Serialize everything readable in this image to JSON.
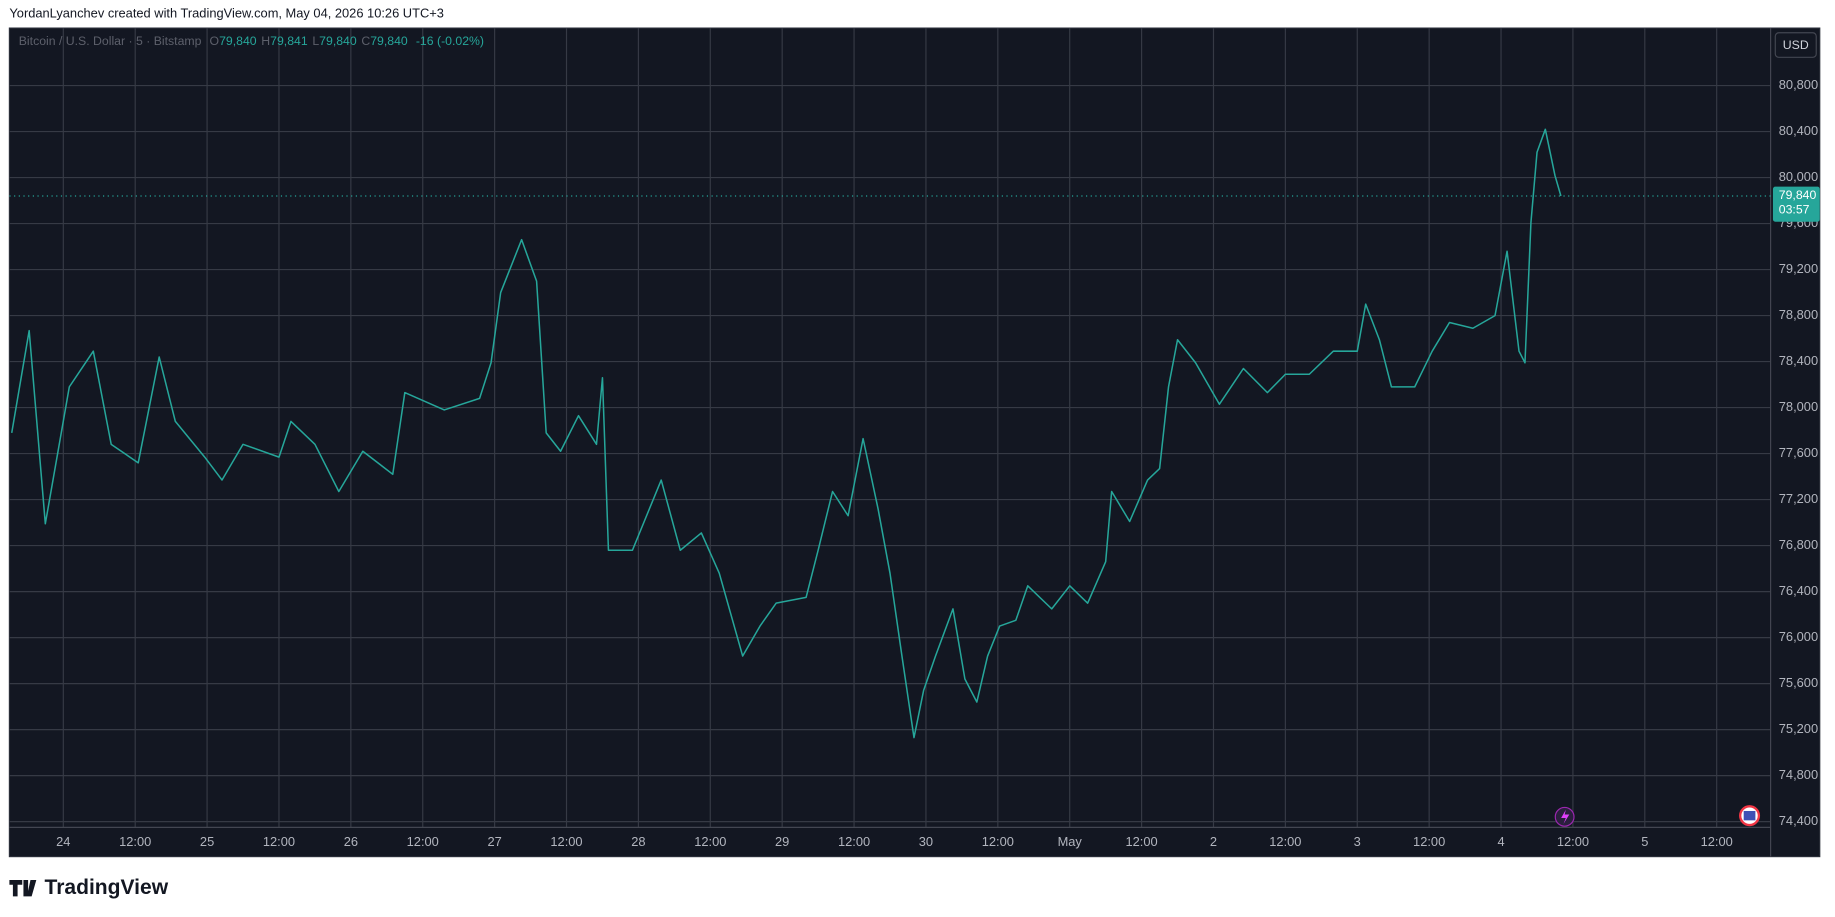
{
  "chart_data": {
    "type": "line",
    "header": "YordanLyanchev created with TradingView.com, May 04, 2026 10:26 UTC+3",
    "currency": "USD",
    "brand": "TradingView",
    "ohlc": [
      {
        "key": "O",
        "text": "79,840"
      },
      {
        "key": "H",
        "text": "79,841"
      },
      {
        "key": "L",
        "text": "79,840"
      },
      {
        "key": "C",
        "text": "79,840"
      }
    ],
    "change": "-16 (-0.02%)",
    "last_price": {
      "value": 79840,
      "label": "79,840"
    },
    "countdown": "03:57",
    "series": [
      {
        "name": "Bitcoin / U.S. Dollar · 5 · Bitstamp",
        "color": "#26a69a",
        "x": [
          -8.6,
          -5.7,
          -3,
          1,
          5,
          8,
          12.5,
          16,
          18.7,
          23.6,
          26.5,
          30,
          36,
          38,
          42,
          46,
          50,
          55,
          57,
          63.6,
          69.5,
          71.4,
          73,
          76.5,
          79,
          80.6,
          83,
          86,
          89,
          90,
          91,
          95,
          99.8,
          103,
          106.5,
          109.5,
          113.4,
          116.3,
          119,
          124,
          126,
          128.4,
          131,
          133.5,
          136,
          138,
          140,
          142,
          143.6,
          145.6,
          148.5,
          150.5,
          152.5,
          154.3,
          156.3,
          159,
          161,
          165,
          168,
          171,
          174,
          175,
          178,
          181,
          183,
          184.5,
          186,
          189,
          193,
          197,
          201,
          204,
          208,
          212,
          216,
          217.4,
          219.7,
          221.7,
          225.6,
          228.5,
          231.4,
          235.3,
          239,
          241,
          243,
          244,
          245,
          246,
          247.4,
          249,
          250
        ],
        "values": [
          77780,
          78670,
          76990,
          78180,
          78490,
          77680,
          77520,
          78440,
          77880,
          77570,
          77370,
          77680,
          77570,
          77880,
          77680,
          77270,
          77620,
          77420,
          78130,
          77980,
          78080,
          78390,
          79000,
          79460,
          79100,
          77780,
          77620,
          77930,
          77680,
          78260,
          76760,
          76760,
          77370,
          76760,
          76910,
          76560,
          75840,
          76100,
          76300,
          76350,
          76760,
          77270,
          77060,
          77730,
          77120,
          76560,
          75840,
          75130,
          75540,
          75840,
          76250,
          75640,
          75440,
          75840,
          76100,
          76150,
          76450,
          76250,
          76450,
          76300,
          76660,
          77270,
          77010,
          77370,
          77470,
          78180,
          78590,
          78390,
          78030,
          78340,
          78130,
          78290,
          78290,
          78490,
          78490,
          78900,
          78590,
          78180,
          78180,
          78490,
          78740,
          78690,
          78800,
          79360,
          78490,
          78390,
          79610,
          80220,
          80420,
          80020,
          79840
        ]
      }
    ],
    "xlim": [
      -9,
      285
    ],
    "xticks": [
      {
        "value": 0,
        "label": "24"
      },
      {
        "value": 12,
        "label": "12:00"
      },
      {
        "value": 24,
        "label": "25"
      },
      {
        "value": 36,
        "label": "12:00"
      },
      {
        "value": 48,
        "label": "26"
      },
      {
        "value": 60,
        "label": "12:00"
      },
      {
        "value": 72,
        "label": "27"
      },
      {
        "value": 84,
        "label": "12:00"
      },
      {
        "value": 96,
        "label": "28"
      },
      {
        "value": 108,
        "label": "12:00"
      },
      {
        "value": 120,
        "label": "29"
      },
      {
        "value": 132,
        "label": "12:00"
      },
      {
        "value": 144,
        "label": "30"
      },
      {
        "value": 156,
        "label": "12:00"
      },
      {
        "value": 168,
        "label": "May"
      },
      {
        "value": 180,
        "label": "12:00"
      },
      {
        "value": 192,
        "label": "2"
      },
      {
        "value": 204,
        "label": "12:00"
      },
      {
        "value": 216,
        "label": "3"
      },
      {
        "value": 228,
        "label": "12:00"
      },
      {
        "value": 240,
        "label": "4"
      },
      {
        "value": 252,
        "label": "12:00"
      },
      {
        "value": 264,
        "label": "5"
      },
      {
        "value": 276,
        "label": "12:00"
      }
    ],
    "ylim": [
      74350,
      81300
    ],
    "yticks": [
      {
        "value": 74400,
        "label": "74,400"
      },
      {
        "value": 74800,
        "label": "74,800"
      },
      {
        "value": 75200,
        "label": "75,200"
      },
      {
        "value": 75600,
        "label": "75,600"
      },
      {
        "value": 76000,
        "label": "76,000"
      },
      {
        "value": 76400,
        "label": "76,400"
      },
      {
        "value": 76800,
        "label": "76,800"
      },
      {
        "value": 77200,
        "label": "77,200"
      },
      {
        "value": 77600,
        "label": "77,600"
      },
      {
        "value": 78000,
        "label": "78,000"
      },
      {
        "value": 78400,
        "label": "78,400"
      },
      {
        "value": 78800,
        "label": "78,800"
      },
      {
        "value": 79200,
        "label": "79,200"
      },
      {
        "value": 79600,
        "label": "79,600"
      },
      {
        "value": 80000,
        "label": "80,000"
      },
      {
        "value": 80400,
        "label": "80,400"
      },
      {
        "value": 80800,
        "label": "80,800"
      }
    ],
    "grid": true
  }
}
